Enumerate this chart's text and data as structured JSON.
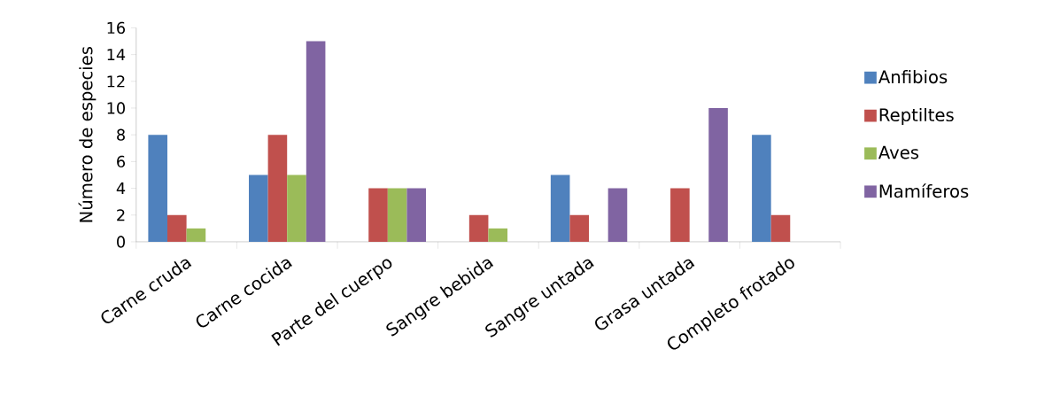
{
  "chart_data": {
    "type": "bar",
    "ylabel": "Número de especies",
    "categories": [
      "Carne cruda",
      "Carne cocida",
      "Parte del cuerpo",
      "Sangre bebida",
      "Sangre untada",
      "Grasa untada",
      "Completo frotado"
    ],
    "series": [
      {
        "name": "Anfibios",
        "color": "#4f81bd",
        "values": [
          8,
          5,
          0,
          0,
          5,
          0,
          8
        ]
      },
      {
        "name": "Reptiltes",
        "color": "#c0504d",
        "values": [
          2,
          8,
          4,
          2,
          2,
          4,
          2
        ]
      },
      {
        "name": "Aves",
        "color": "#9bbb59",
        "values": [
          1,
          5,
          4,
          1,
          0,
          0,
          0
        ]
      },
      {
        "name": "Mamíferos",
        "color": "#8064a2",
        "values": [
          0,
          15,
          4,
          0,
          4,
          10,
          0
        ]
      }
    ],
    "ylim": [
      0,
      16
    ],
    "yticks": [
      0,
      2,
      4,
      6,
      8,
      10,
      12,
      14,
      16
    ],
    "grid": false,
    "legend": "right"
  }
}
